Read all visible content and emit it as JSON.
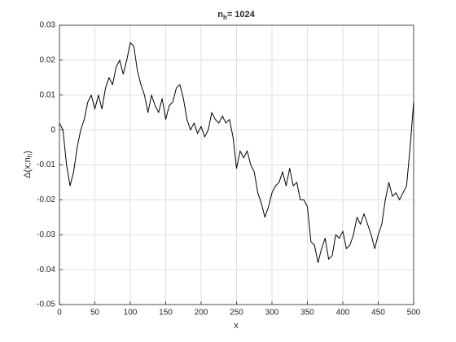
{
  "chart_data": {
    "type": "line",
    "title_parts": [
      "n",
      "h",
      "= 1024"
    ],
    "x_label": "x",
    "y_label_parts": [
      "Δ(x;n",
      "h",
      ")"
    ],
    "x": [
      0,
      5,
      10,
      15,
      20,
      25,
      30,
      35,
      40,
      45,
      50,
      55,
      60,
      65,
      70,
      75,
      80,
      85,
      90,
      95,
      100,
      105,
      110,
      115,
      120,
      125,
      130,
      135,
      140,
      145,
      150,
      155,
      160,
      165,
      170,
      175,
      180,
      185,
      190,
      195,
      200,
      205,
      210,
      215,
      220,
      225,
      230,
      235,
      240,
      245,
      250,
      255,
      260,
      265,
      270,
      275,
      280,
      285,
      290,
      295,
      300,
      305,
      310,
      315,
      320,
      325,
      330,
      335,
      340,
      345,
      350,
      355,
      360,
      365,
      370,
      375,
      380,
      385,
      390,
      395,
      400,
      405,
      410,
      415,
      420,
      425,
      430,
      435,
      440,
      445,
      450,
      455,
      460,
      465,
      470,
      475,
      480,
      485,
      490,
      495,
      500
    ],
    "series": [
      {
        "color": "#000000",
        "values": [
          0.002,
          0.0,
          -0.01,
          -0.016,
          -0.012,
          -0.005,
          0.0,
          0.003,
          0.008,
          0.01,
          0.006,
          0.01,
          0.006,
          0.012,
          0.015,
          0.013,
          0.018,
          0.02,
          0.016,
          0.02,
          0.025,
          0.024,
          0.017,
          0.013,
          0.01,
          0.005,
          0.01,
          0.007,
          0.005,
          0.009,
          0.003,
          0.007,
          0.008,
          0.012,
          0.013,
          0.009,
          0.003,
          0.0,
          0.002,
          -0.001,
          0.001,
          -0.002,
          0.0,
          0.005,
          0.003,
          0.002,
          0.004,
          0.002,
          0.003,
          -0.002,
          -0.011,
          -0.006,
          -0.008,
          -0.006,
          -0.01,
          -0.012,
          -0.018,
          -0.021,
          -0.025,
          -0.022,
          -0.018,
          -0.016,
          -0.015,
          -0.012,
          -0.016,
          -0.011,
          -0.016,
          -0.015,
          -0.02,
          -0.02,
          -0.022,
          -0.032,
          -0.033,
          -0.038,
          -0.034,
          -0.031,
          -0.037,
          -0.036,
          -0.03,
          -0.031,
          -0.029,
          -0.034,
          -0.033,
          -0.03,
          -0.025,
          -0.027,
          -0.024,
          -0.027,
          -0.03,
          -0.034,
          -0.03,
          -0.027,
          -0.02,
          -0.015,
          -0.019,
          -0.018,
          -0.02,
          -0.018,
          -0.016,
          -0.005,
          0.008
        ]
      }
    ],
    "xlim": [
      0,
      500
    ],
    "xticks": [
      0,
      50,
      100,
      150,
      200,
      250,
      300,
      350,
      400,
      450,
      500
    ],
    "ylim": [
      -0.05,
      0.03
    ],
    "yticks": [
      -0.05,
      -0.04,
      -0.03,
      -0.02,
      -0.01,
      0,
      0.01,
      0.02,
      0.03
    ],
    "grid": true
  }
}
